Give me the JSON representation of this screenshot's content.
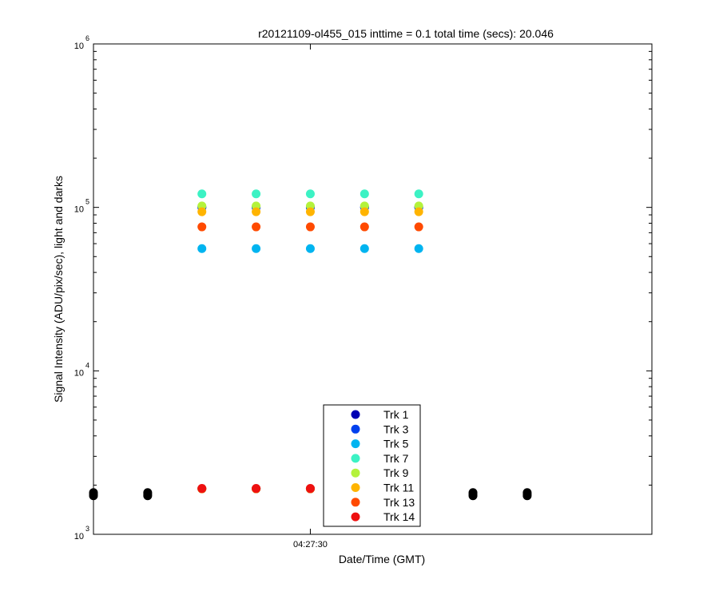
{
  "chart_data": {
    "type": "scatter",
    "title": "r20121109-ol455_015 inttime = 0.1 total time (secs): 20.046",
    "xlabel": "Date/Time (GMT)",
    "ylabel": "Signal Intensity (ADU/pix/sec), light and darks",
    "x_tick_labels": [
      "04:27:30"
    ],
    "y_scale": "log",
    "ylim": [
      1000,
      1000000
    ],
    "y_tick_labels": [
      {
        "value": 1000,
        "base": "10",
        "exp": "3"
      },
      {
        "value": 10000,
        "base": "10",
        "exp": "4"
      },
      {
        "value": 100000,
        "base": "10",
        "exp": "5"
      },
      {
        "value": 1000000,
        "base": "10",
        "exp": "6"
      }
    ],
    "x_tick_index": 4,
    "x_range_index": [
      0,
      10.3
    ],
    "light_frame_indices": [
      2,
      3,
      4,
      5,
      6
    ],
    "dark_frame_indices": [
      0,
      1,
      7,
      8
    ],
    "dark_values_sample": [
      [
        1720,
        1760,
        1800
      ],
      [
        1720,
        1760,
        1800
      ],
      [
        1720,
        1760,
        1800
      ],
      [
        1720,
        1760,
        1800
      ]
    ],
    "dark_color": "#000000",
    "grid": false,
    "legend_position": "bottom-center",
    "series": [
      {
        "name": "Trk 1",
        "color": "#0000b4",
        "light": 100000,
        "dark": 1900
      },
      {
        "name": "Trk 3",
        "color": "#0040ee",
        "light": 100000,
        "dark": 1900
      },
      {
        "name": "Trk 5",
        "color": "#00b4f0",
        "light": 56000,
        "dark": 1900
      },
      {
        "name": "Trk 7",
        "color": "#3cf2c4",
        "light": 121000,
        "dark": 1900
      },
      {
        "name": "Trk 9",
        "color": "#b4f23c",
        "light": 102000,
        "dark": 1900
      },
      {
        "name": "Trk 11",
        "color": "#ffb400",
        "light": 94000,
        "dark": 1900
      },
      {
        "name": "Trk 13",
        "color": "#ff4a00",
        "light": 76000,
        "dark": 1900
      },
      {
        "name": "Trk 14",
        "color": "#ee1010",
        "light": null,
        "dark": 1910
      }
    ]
  }
}
